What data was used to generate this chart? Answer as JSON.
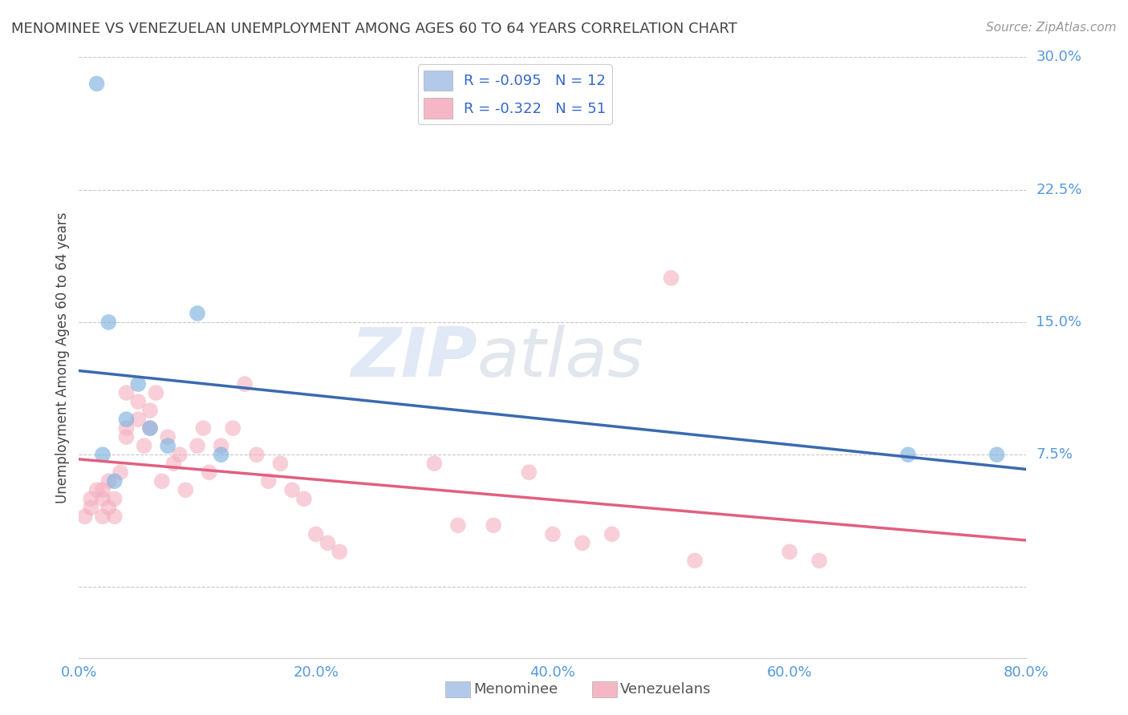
{
  "title": "MENOMINEE VS VENEZUELAN UNEMPLOYMENT AMONG AGES 60 TO 64 YEARS CORRELATION CHART",
  "source": "Source: ZipAtlas.com",
  "ylabel": "Unemployment Among Ages 60 to 64 years",
  "xlim": [
    0.0,
    0.8
  ],
  "ylim": [
    0.0,
    0.3
  ],
  "xticks": [
    0.0,
    0.2,
    0.4,
    0.6,
    0.8
  ],
  "xticklabels": [
    "0.0%",
    "20.0%",
    "40.0%",
    "60.0%",
    "80.0%"
  ],
  "ytick_positions": [
    0.0,
    0.075,
    0.15,
    0.225,
    0.3
  ],
  "yticklabels_right": [
    "",
    "7.5%",
    "15.0%",
    "22.5%",
    "30.0%"
  ],
  "legend_label1": "R = -0.095   N = 12",
  "legend_label2": "R = -0.322   N = 51",
  "legend_label_bottom1": "Menominee",
  "legend_label_bottom2": "Venezuelans",
  "menominee_color": "#aac4e8",
  "venezuelan_color": "#f4afc0",
  "menominee_scatter_color": "#7fb3e0",
  "venezuelan_scatter_color": "#f4afc0",
  "menominee_line_color": "#3a6ab0",
  "venezuelan_line_color": "#e06080",
  "grid_color": "#c8c8c8",
  "background_color": "#ffffff",
  "title_color": "#444444",
  "axis_label_color": "#444444",
  "ytick_color": "#5599dd",
  "xtick_color": "#5599dd",
  "watermark_zip": "ZIP",
  "watermark_atlas": "atlas",
  "menominee_x": [
    0.015,
    0.02,
    0.025,
    0.03,
    0.04,
    0.05,
    0.06,
    0.075,
    0.1,
    0.12,
    0.7,
    0.775
  ],
  "menominee_y": [
    0.285,
    0.075,
    0.15,
    0.06,
    0.095,
    0.115,
    0.09,
    0.08,
    0.155,
    0.075,
    0.075,
    0.075
  ],
  "venezuelan_x": [
    0.005,
    0.01,
    0.01,
    0.015,
    0.02,
    0.02,
    0.02,
    0.025,
    0.025,
    0.03,
    0.03,
    0.035,
    0.04,
    0.04,
    0.04,
    0.05,
    0.05,
    0.055,
    0.06,
    0.06,
    0.065,
    0.07,
    0.075,
    0.08,
    0.085,
    0.09,
    0.1,
    0.105,
    0.11,
    0.12,
    0.13,
    0.14,
    0.15,
    0.16,
    0.17,
    0.18,
    0.19,
    0.2,
    0.21,
    0.22,
    0.3,
    0.32,
    0.35,
    0.38,
    0.4,
    0.425,
    0.45,
    0.5,
    0.52,
    0.6,
    0.625
  ],
  "venezuelan_y": [
    0.04,
    0.045,
    0.05,
    0.055,
    0.04,
    0.05,
    0.055,
    0.045,
    0.06,
    0.04,
    0.05,
    0.065,
    0.11,
    0.09,
    0.085,
    0.095,
    0.105,
    0.08,
    0.09,
    0.1,
    0.11,
    0.06,
    0.085,
    0.07,
    0.075,
    0.055,
    0.08,
    0.09,
    0.065,
    0.08,
    0.09,
    0.115,
    0.075,
    0.06,
    0.07,
    0.055,
    0.05,
    0.03,
    0.025,
    0.02,
    0.07,
    0.035,
    0.035,
    0.065,
    0.03,
    0.025,
    0.03,
    0.175,
    0.015,
    0.02,
    0.015
  ]
}
